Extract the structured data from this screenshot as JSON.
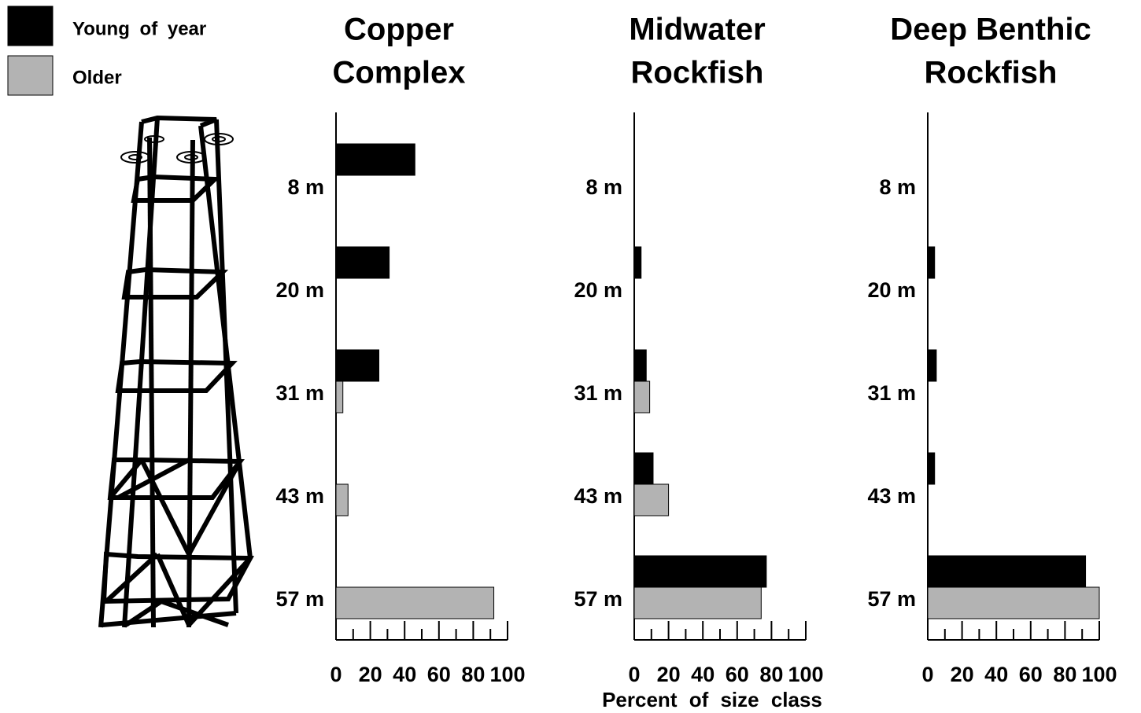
{
  "chart_data": [
    {
      "type": "hbar",
      "title": [
        "Copper",
        "Complex"
      ],
      "categories": [
        "8 m",
        "20 m",
        "31 m",
        "43 m",
        "57 m"
      ],
      "series": [
        {
          "name": "Young of year",
          "color": "#000000",
          "values": [
            46,
            31,
            25,
            0,
            0
          ]
        },
        {
          "name": "Older",
          "color": "#b3b3b3",
          "values": [
            0,
            0,
            4,
            7,
            92
          ]
        }
      ],
      "xlim": [
        0,
        100
      ],
      "xticks": [
        0,
        20,
        40,
        60,
        80,
        100
      ],
      "xticks_minor": [
        10,
        30,
        50,
        70,
        90
      ]
    },
    {
      "type": "hbar",
      "title": [
        "Midwater",
        "Rockfish"
      ],
      "categories": [
        "8 m",
        "20 m",
        "31 m",
        "43 m",
        "57 m"
      ],
      "series": [
        {
          "name": "Young of year",
          "color": "#000000",
          "values": [
            0,
            4,
            7,
            11,
            77
          ]
        },
        {
          "name": "Older",
          "color": "#b3b3b3",
          "values": [
            0,
            0,
            9,
            20,
            74
          ]
        }
      ],
      "xlim": [
        0,
        100
      ],
      "xticks": [
        0,
        20,
        40,
        60,
        80,
        100
      ],
      "xticks_minor": [
        10,
        30,
        50,
        70,
        90
      ],
      "xlabel": "Percent of size class"
    },
    {
      "type": "hbar",
      "title": [
        "Deep Benthic",
        "Rockfish"
      ],
      "categories": [
        "8 m",
        "20 m",
        "31 m",
        "43 m",
        "57 m"
      ],
      "series": [
        {
          "name": "Young of year",
          "color": "#000000",
          "values": [
            0,
            4,
            5,
            4,
            92
          ]
        },
        {
          "name": "Older",
          "color": "#b3b3b3",
          "values": [
            0,
            0,
            0,
            0,
            100
          ]
        }
      ],
      "xlim": [
        0,
        100
      ],
      "xticks": [
        0,
        20,
        40,
        60,
        80,
        100
      ],
      "xticks_minor": [
        10,
        30,
        50,
        70,
        90
      ]
    }
  ]
}
